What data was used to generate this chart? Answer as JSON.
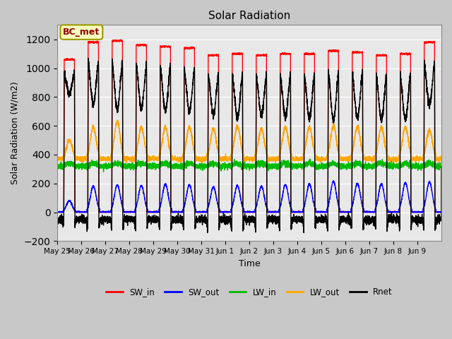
{
  "title": "Solar Radiation",
  "ylabel": "Solar Radiation (W/m2)",
  "xlabel": "Time",
  "ylim": [
    -200,
    1300
  ],
  "yticks": [
    -200,
    0,
    200,
    400,
    600,
    800,
    1000,
    1200
  ],
  "annotation_text": "BC_met",
  "fig_facecolor": "#c8c8c8",
  "plot_bg_color": "#e8e8e8",
  "series_colors": {
    "SW_in": "#ff0000",
    "SW_out": "#0000ff",
    "LW_in": "#00bb00",
    "LW_out": "#ffa500",
    "Rnet": "#000000"
  },
  "n_days": 16,
  "tick_labels": [
    "May 25",
    "May 26",
    "May 27",
    "May 28",
    "May 29",
    "May 30",
    "May 31",
    "Jun 1",
    "Jun 2",
    "Jun 3",
    "Jun 4",
    "Jun 5",
    "Jun 6",
    "Jun 7",
    "Jun 8",
    "Jun 9"
  ]
}
